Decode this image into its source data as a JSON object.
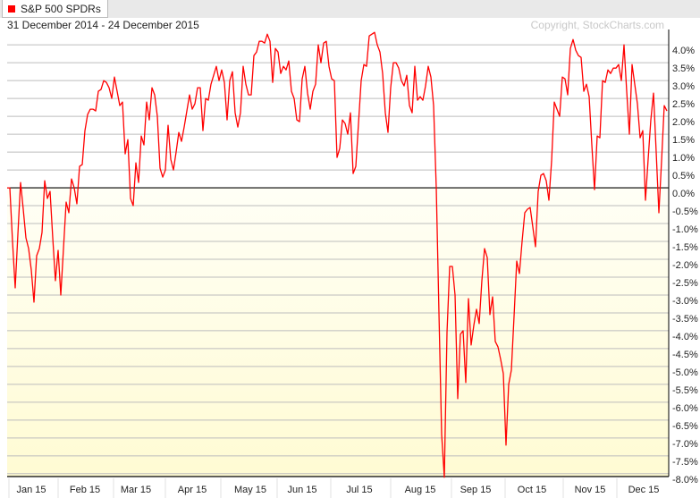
{
  "legend": {
    "label": "S&P 500 SPDRs",
    "color": "#ff0000"
  },
  "date_range": "31 December 2014 - 24 December 2015",
  "copyright": "Copyright, StockCharts.com",
  "chart_data": {
    "type": "line",
    "title": "",
    "x_start": "2014-12-31",
    "x_end": "2015-12-24",
    "xlabel": "",
    "ylabel": "",
    "ylim": [
      -8.08,
      4.43
    ],
    "grid": true,
    "legend_position": "top-left",
    "zero_line": true,
    "fill_below_zero": "#fffbd3",
    "line_color": "#ff0000",
    "y_ticks": [
      4.0,
      3.5,
      3.0,
      2.5,
      2.0,
      1.5,
      1.0,
      0.5,
      0.0,
      -0.5,
      -1.0,
      -1.5,
      -2.0,
      -2.5,
      -3.0,
      -3.5,
      -4.0,
      -4.5,
      -5.0,
      -5.5,
      -6.0,
      -6.5,
      -7.0,
      -7.5,
      -8.0
    ],
    "y_tick_labels": [
      "4.0%",
      "3.5%",
      "3.0%",
      "2.5%",
      "2.0%",
      "1.5%",
      "1.0%",
      "0.5%",
      "0.0%",
      "-0.5%",
      "-1.0%",
      "-1.5%",
      "-2.0%",
      "-2.5%",
      "-3.0%",
      "-3.5%",
      "-4.0%",
      "-4.5%",
      "-5.0%",
      "-5.5%",
      "-6.0%",
      "-6.5%",
      "-7.0%",
      "-7.5%",
      "-8.0%"
    ],
    "x_tick_labels": [
      "Jan 15",
      "Feb 15",
      "Mar 15",
      "Apr 15",
      "May 15",
      "Jun 15",
      "Jul 15",
      "Aug 15",
      "Sep 15",
      "Oct 15",
      "Nov 15",
      "Dec 15"
    ],
    "series": [
      {
        "name": "S&P 500 SPDRs",
        "values": [
          0,
          0,
          -1.5,
          -2.8,
          -1.3,
          0.15,
          -0.6,
          -1.4,
          -1.7,
          -2.3,
          -3.2,
          -1.9,
          -1.7,
          -1.25,
          0.2,
          -0.3,
          -0.1,
          -1.4,
          -2.6,
          -1.75,
          -3.0,
          -1.7,
          -0.4,
          -0.7,
          0.25,
          0,
          -0.45,
          0.6,
          0.65,
          1.6,
          2.05,
          2.2,
          2.2,
          2.15,
          2.7,
          2.75,
          3.0,
          2.95,
          2.8,
          2.5,
          3.1,
          2.7,
          2.3,
          2.4,
          0.95,
          1.35,
          -0.3,
          -0.5,
          0.7,
          0.15,
          1.45,
          1.2,
          2.4,
          1.9,
          2.8,
          2.6,
          2.0,
          0.55,
          0.3,
          0.5,
          1.75,
          0.8,
          0.5,
          1.0,
          1.55,
          1.3,
          1.7,
          2.15,
          2.6,
          2.2,
          2.35,
          2.8,
          2.8,
          1.6,
          2.5,
          2.45,
          2.9,
          3.15,
          3.4,
          3.0,
          3.3,
          2.95,
          1.9,
          3.0,
          3.25,
          2.1,
          1.7,
          2.1,
          3.4,
          2.9,
          2.6,
          2.6,
          3.7,
          3.8,
          4.1,
          4.1,
          4.05,
          4.3,
          4.1,
          2.95,
          3.9,
          3.8,
          3.2,
          3.4,
          3.3,
          3.55,
          2.7,
          2.5,
          1.9,
          1.85,
          3.05,
          3.4,
          2.65,
          2.2,
          2.7,
          2.9,
          4.0,
          3.5,
          4.05,
          4.1,
          3.4,
          3.05,
          3.0,
          0.85,
          1.1,
          1.9,
          1.8,
          1.5,
          2.1,
          0.4,
          0.6,
          1.8,
          3.0,
          3.45,
          3.4,
          4.25,
          4.3,
          4.35,
          4.0,
          3.8,
          3.2,
          2.1,
          1.55,
          2.8,
          3.5,
          3.5,
          3.35,
          3.0,
          2.85,
          3.15,
          2.3,
          2.1,
          3.4,
          2.45,
          2.55,
          2.45,
          2.85,
          3.4,
          3.1,
          2.3,
          0,
          -3.5,
          -6.9,
          -8.1,
          -4.05,
          -2.2,
          -2.2,
          -3.0,
          -5.9,
          -4.1,
          -4.0,
          -5.45,
          -3.1,
          -4.4,
          -3.85,
          -3.4,
          -3.8,
          -2.6,
          -1.7,
          -1.95,
          -3.55,
          -3.05,
          -4.3,
          -4.45,
          -4.8,
          -5.2,
          -7.2,
          -5.5,
          -5.1,
          -3.6,
          -2.05,
          -2.4,
          -1.5,
          -0.7,
          -0.6,
          -0.55,
          -1.1,
          -1.65,
          -0.1,
          0.35,
          0.4,
          0.2,
          -0.35,
          0.75,
          2.4,
          2.2,
          2.0,
          3.1,
          3.05,
          2.6,
          3.9,
          4.15,
          3.85,
          3.7,
          3.65,
          2.7,
          2.9,
          2.55,
          1.2,
          -0.05,
          1.45,
          1.4,
          3.0,
          2.95,
          3.3,
          3.2,
          3.35,
          3.35,
          3.45,
          3.0,
          4.0,
          2.7,
          1.5,
          3.45,
          2.9,
          2.35,
          1.4,
          1.6,
          -0.35,
          0.8,
          1.9,
          2.65,
          1.0,
          -0.7,
          0.75,
          2.3,
          2.15
        ]
      }
    ]
  }
}
